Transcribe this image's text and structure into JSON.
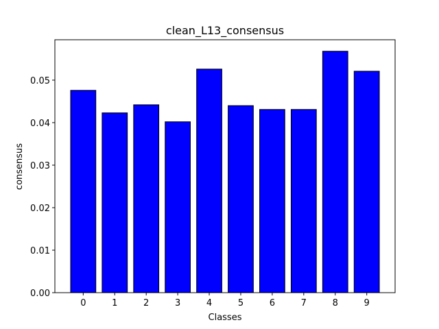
{
  "chart_data": {
    "type": "bar",
    "title": "clean_L13_consensus",
    "x_label": "Classes",
    "y_label": "consensus",
    "categories": [
      "0",
      "1",
      "2",
      "3",
      "4",
      "5",
      "6",
      "7",
      "8",
      "9"
    ],
    "values": [
      0.0476,
      0.0423,
      0.0442,
      0.0402,
      0.0526,
      0.044,
      0.0431,
      0.0431,
      0.0568,
      0.0521
    ],
    "color": "#0000ff",
    "edge_color": "#000000",
    "ylim": [
      0,
      0.0595
    ],
    "yticks": [
      {
        "value": 0,
        "label": "0.00"
      },
      {
        "value": 0.01,
        "label": "0.01"
      },
      {
        "value": 0.02,
        "label": "0.02"
      },
      {
        "value": 0.03,
        "label": "0.03"
      },
      {
        "value": 0.04,
        "label": "0.04"
      },
      {
        "value": 0.05,
        "label": "0.05"
      }
    ],
    "grid": false
  }
}
